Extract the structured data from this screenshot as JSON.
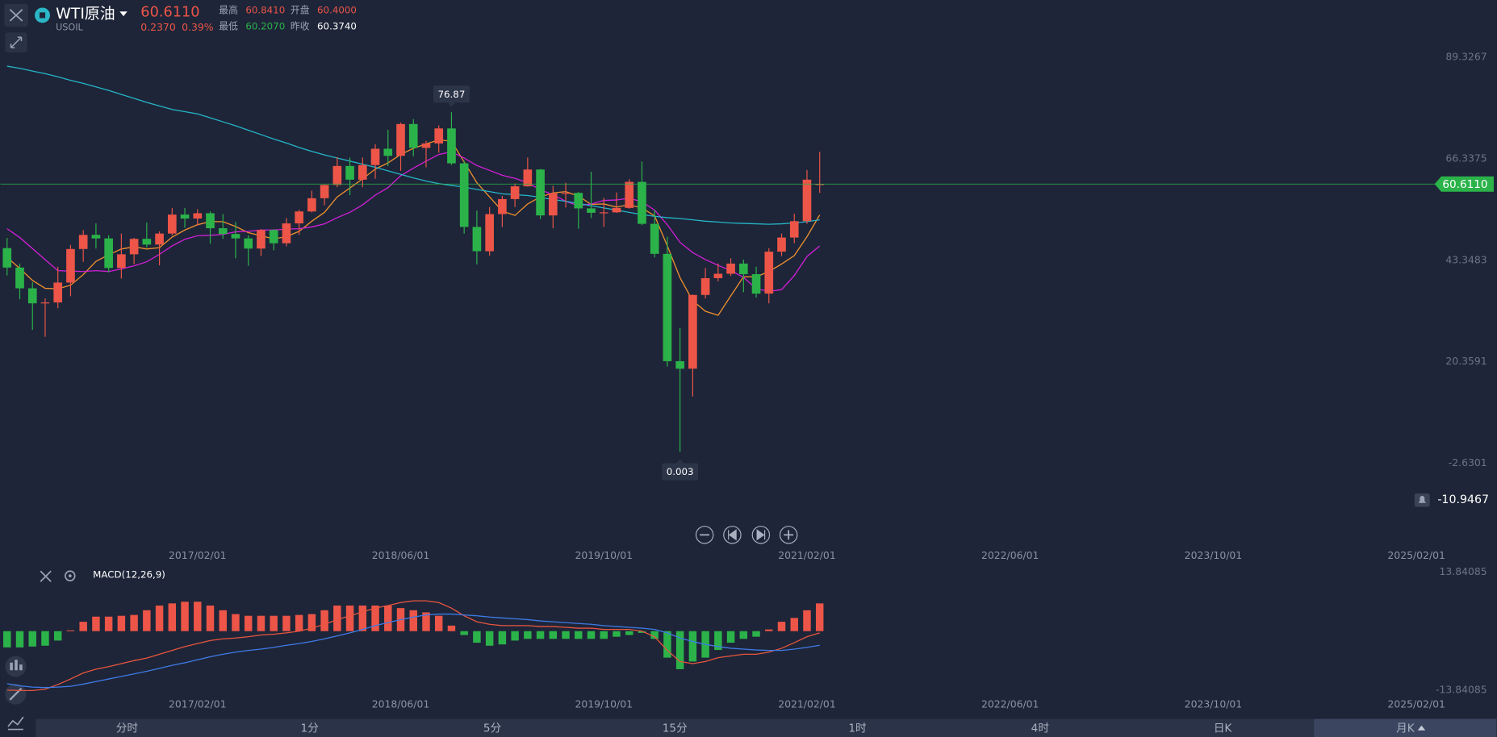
{
  "header": {
    "symbol": "WTI原油",
    "code": "USOIL",
    "price": "60.6110",
    "change": "0.2370",
    "change_pct": "0.39%",
    "stats": [
      {
        "label": "最高",
        "value": "60.8410",
        "tone": "up"
      },
      {
        "label": "开盘",
        "value": "60.4000",
        "tone": "up"
      },
      {
        "label": "最低",
        "value": "60.2070",
        "tone": "down"
      },
      {
        "label": "昨收",
        "value": "60.3740",
        "tone": "flat"
      }
    ]
  },
  "chart_data": [
    {
      "type": "candlestick",
      "x": [
        "2015/11/01",
        "2015/12/01",
        "2016/01/01",
        "2016/02/01",
        "2016/03/01",
        "2016/04/01",
        "2016/05/01",
        "2016/06/01",
        "2016/07/01",
        "2016/08/01",
        "2016/09/01",
        "2016/10/01",
        "2016/11/01",
        "2016/12/01",
        "2017/01/01",
        "2017/02/01",
        "2017/03/01",
        "2017/04/01",
        "2017/05/01",
        "2017/06/01",
        "2017/07/01",
        "2017/08/01",
        "2017/09/01",
        "2017/10/01",
        "2017/11/01",
        "2017/12/01",
        "2018/01/01",
        "2018/02/01",
        "2018/03/01",
        "2018/04/01",
        "2018/05/01",
        "2018/06/01",
        "2018/07/01",
        "2018/08/01",
        "2018/09/01",
        "2018/10/01",
        "2018/11/01",
        "2018/12/01",
        "2019/01/01",
        "2019/02/01",
        "2019/03/01",
        "2019/04/01",
        "2019/05/01",
        "2019/06/01",
        "2019/07/01",
        "2019/08/01",
        "2019/09/01",
        "2019/10/01",
        "2019/11/01",
        "2019/12/01",
        "2020/01/01",
        "2020/02/01",
        "2020/03/01",
        "2020/04/01",
        "2020/05/01",
        "2020/06/01",
        "2020/07/01",
        "2020/08/01",
        "2020/09/01",
        "2020/10/01",
        "2020/11/01",
        "2020/12/01",
        "2021/01/01",
        "2021/02/01",
        "2021/03/01"
      ],
      "open": [
        46.1,
        41.7,
        37.0,
        33.6,
        33.8,
        38.3,
        45.9,
        49.1,
        48.3,
        41.6,
        44.7,
        48.2,
        46.9,
        49.4,
        53.7,
        52.8,
        54.0,
        50.6,
        49.3,
        48.3,
        46.0,
        50.2,
        47.2,
        51.7,
        54.4,
        57.4,
        60.4,
        64.7,
        61.6,
        64.9,
        68.6,
        67.0,
        74.2,
        68.8,
        69.8,
        73.2,
        65.3,
        50.9,
        45.4,
        53.8,
        57.2,
        60.1,
        63.9,
        53.5,
        58.5,
        58.6,
        55.1,
        54.1,
        54.2,
        55.2,
        61.1,
        51.6,
        44.8,
        20.5,
        18.8,
        35.5,
        39.3,
        40.3,
        42.6,
        40.2,
        35.8,
        45.3,
        48.5,
        52.2,
        60.4
      ],
      "high": [
        48.4,
        42.6,
        38.4,
        34.7,
        41.9,
        46.8,
        50.2,
        51.7,
        49.0,
        49.4,
        48.4,
        51.9,
        49.9,
        55.2,
        55.2,
        54.9,
        54.4,
        53.8,
        52.0,
        49.0,
        50.4,
        50.4,
        52.9,
        54.8,
        59.1,
        60.5,
        66.7,
        66.6,
        66.6,
        69.6,
        72.9,
        74.5,
        75.3,
        70.4,
        73.9,
        76.87,
        65.9,
        54.6,
        55.4,
        57.9,
        60.7,
        66.6,
        64.0,
        60.2,
        60.9,
        58.8,
        63.4,
        57.5,
        58.7,
        61.7,
        65.7,
        54.7,
        48.7,
        28.0,
        35.6,
        41.6,
        42.6,
        43.8,
        43.5,
        41.9,
        46.1,
        49.4,
        53.9,
        63.8,
        67.9
      ],
      "low": [
        39.9,
        34.5,
        27.6,
        26.0,
        32.5,
        35.2,
        43.0,
        46.0,
        40.6,
        39.2,
        42.5,
        46.2,
        42.2,
        49.0,
        50.7,
        51.2,
        47.1,
        48.2,
        43.8,
        42.1,
        44.3,
        45.6,
        46.5,
        49.1,
        54.2,
        55.8,
        59.9,
        58.1,
        59.9,
        61.8,
        64.7,
        63.6,
        66.9,
        64.4,
        67.7,
        64.9,
        49.4,
        42.4,
        44.4,
        50.9,
        55.4,
        60.0,
        52.7,
        50.6,
        55.3,
        50.5,
        52.9,
        50.9,
        54.1,
        55.0,
        51.3,
        44.0,
        19.3,
        0.003,
        12.5,
        34.7,
        38.6,
        39.8,
        36.1,
        34.9,
        33.6,
        44.3,
        47.2,
        51.6,
        58.6
      ],
      "close": [
        41.7,
        37.0,
        33.6,
        33.8,
        38.3,
        45.9,
        49.1,
        48.3,
        41.6,
        44.7,
        48.2,
        46.9,
        49.4,
        53.7,
        52.8,
        54.0,
        50.6,
        49.3,
        48.3,
        46.0,
        50.2,
        47.2,
        51.7,
        54.4,
        57.4,
        60.4,
        64.7,
        61.6,
        64.9,
        68.6,
        67.0,
        74.2,
        68.8,
        69.8,
        73.2,
        65.3,
        50.9,
        45.4,
        53.8,
        57.2,
        60.1,
        63.9,
        53.5,
        58.5,
        58.6,
        55.1,
        54.1,
        54.2,
        55.2,
        61.1,
        51.6,
        44.8,
        20.5,
        18.8,
        35.5,
        39.3,
        40.3,
        42.6,
        40.2,
        35.8,
        45.3,
        48.5,
        52.2,
        61.6,
        60.611
      ],
      "up_color": "#ec5548",
      "down_color": "#2bb34a",
      "lines": [
        {
          "color": "#f0902e",
          "values": [
            44.0,
            41.5,
            38.8,
            37.0,
            36.9,
            37.7,
            40.1,
            43.1,
            44.6,
            45.9,
            46.4,
            45.9,
            46.2,
            48.6,
            50.2,
            51.4,
            52.1,
            52.1,
            51.0,
            49.6,
            48.9,
            48.2,
            48.7,
            49.9,
            52.2,
            54.2,
            57.7,
            59.7,
            61.8,
            64.0,
            65.4,
            67.3,
            68.7,
            69.7,
            70.6,
            70.3,
            65.6,
            60.9,
            57.7,
            54.5,
            53.5,
            56.1,
            57.7,
            58.6,
            58.9,
            57.9,
            56.0,
            56.1,
            55.4,
            55.9,
            55.2,
            53.4,
            46.6,
            39.4,
            34.2,
            31.8,
            30.9,
            35.3,
            39.6,
            39.6,
            40.8,
            42.5,
            44.4,
            48.7,
            53.6
          ]
        },
        {
          "color": "#d21fd8",
          "values": [
            50.5,
            48.5,
            46.0,
            43.5,
            41.0,
            40.9,
            40.8,
            41.0,
            40.8,
            41.4,
            42.1,
            43.0,
            44.7,
            46.6,
            48.1,
            48.9,
            49.0,
            49.2,
            49.8,
            49.9,
            50.2,
            50.2,
            50.4,
            50.5,
            50.9,
            51.6,
            53.0,
            54.2,
            55.9,
            58.1,
            59.8,
            62.5,
            64.2,
            65.8,
            67.3,
            67.9,
            66.5,
            64.8,
            63.7,
            62.6,
            61.9,
            60.9,
            59.3,
            58.2,
            56.7,
            55.7,
            56.1,
            56.9,
            57.0,
            57.4,
            56.6,
            54.7,
            51.4,
            47.4,
            45.1,
            43.5,
            42.2,
            41.0,
            39.5,
            36.9,
            36.3,
            36.7,
            39.9,
            44.2,
            46.6
          ]
        },
        {
          "color": "#25b5c8",
          "values": [
            87.3,
            86.8,
            86.2,
            85.6,
            84.9,
            84.1,
            83.4,
            82.6,
            81.8,
            80.9,
            80.0,
            79.1,
            78.3,
            77.5,
            77.0,
            76.5,
            75.6,
            74.7,
            73.8,
            72.8,
            71.8,
            70.8,
            69.9,
            68.9,
            68.0,
            67.2,
            66.5,
            65.8,
            65.1,
            64.4,
            63.6,
            62.8,
            62.0,
            61.3,
            60.7,
            60.3,
            59.9,
            59.4,
            58.9,
            58.4,
            58.2,
            58.0,
            57.6,
            57.1,
            56.7,
            56.2,
            55.7,
            55.2,
            54.7,
            54.2,
            53.7,
            53.3,
            53.0,
            52.8,
            52.5,
            52.2,
            52.0,
            51.8,
            51.7,
            51.6,
            51.5,
            51.6,
            51.8,
            52.1,
            52.5
          ]
        }
      ],
      "annotations": [
        {
          "x": "2018/10/01",
          "value": 76.87,
          "side": "top"
        },
        {
          "x": "2020/04/01",
          "value": 0.003,
          "side": "bottom"
        }
      ],
      "last_price": {
        "value": 60.611,
        "label": "60.6110"
      },
      "cursor_price": -10.9467,
      "xlim": [
        "2015/10/01",
        "2025/03/01"
      ],
      "xticks": [
        "2017/02/01",
        "2018/06/01",
        "2019/10/01",
        "2021/02/01",
        "2022/06/01",
        "2023/10/01",
        "2025/02/01"
      ],
      "ylim": [
        -10.9467,
        102.28
      ],
      "yticks": [
        -2.6301,
        20.3591,
        43.3483,
        66.3375,
        89.3267
      ]
    },
    {
      "type": "macd",
      "title": "MACD(12,26,9)",
      "x": [
        "2015/11/01",
        "2015/12/01",
        "2016/01/01",
        "2016/02/01",
        "2016/03/01",
        "2016/04/01",
        "2016/05/01",
        "2016/06/01",
        "2016/07/01",
        "2016/08/01",
        "2016/09/01",
        "2016/10/01",
        "2016/11/01",
        "2016/12/01",
        "2017/01/01",
        "2017/02/01",
        "2017/03/01",
        "2017/04/01",
        "2017/05/01",
        "2017/06/01",
        "2017/07/01",
        "2017/08/01",
        "2017/09/01",
        "2017/10/01",
        "2017/11/01",
        "2017/12/01",
        "2018/01/01",
        "2018/02/01",
        "2018/03/01",
        "2018/04/01",
        "2018/05/01",
        "2018/06/01",
        "2018/07/01",
        "2018/08/01",
        "2018/09/01",
        "2018/10/01",
        "2018/11/01",
        "2018/12/01",
        "2019/01/01",
        "2019/02/01",
        "2019/03/01",
        "2019/04/01",
        "2019/05/01",
        "2019/06/01",
        "2019/07/01",
        "2019/08/01",
        "2019/09/01",
        "2019/10/01",
        "2019/11/01",
        "2019/12/01",
        "2020/01/01",
        "2020/02/01",
        "2020/03/01",
        "2020/04/01",
        "2020/05/01",
        "2020/06/01",
        "2020/07/01",
        "2020/08/01",
        "2020/09/01",
        "2020/10/01",
        "2020/11/01",
        "2020/12/01",
        "2021/01/01",
        "2021/02/01",
        "2021/03/01"
      ],
      "histogram": {
        "up_color": "#ec5548",
        "down_color": "#2bb34a",
        "values": [
          -3.8,
          -3.8,
          -3.6,
          -3.4,
          -2.2,
          0.2,
          2.2,
          3.4,
          3.4,
          3.6,
          3.8,
          4.9,
          6.0,
          6.5,
          6.9,
          6.9,
          6.0,
          4.9,
          4.0,
          3.6,
          3.6,
          3.6,
          3.6,
          3.8,
          4.0,
          4.9,
          6.0,
          6.0,
          6.0,
          6.0,
          6.0,
          5.4,
          4.9,
          4.4,
          3.6,
          1.3,
          -0.9,
          -2.7,
          -3.4,
          -3.1,
          -2.2,
          -1.8,
          -1.8,
          -1.8,
          -1.8,
          -1.8,
          -1.8,
          -1.8,
          -1.3,
          -0.9,
          -0.4,
          -1.8,
          -6.2,
          -8.9,
          -7.1,
          -6.2,
          -4.4,
          -2.7,
          -1.8,
          -1.3,
          0.4,
          2.2,
          3.1,
          4.9,
          6.5
        ]
      },
      "lines": [
        {
          "color": "#e8553f",
          "values": [
            -13.8,
            -13.9,
            -13.9,
            -13.6,
            -12.5,
            -11.2,
            -9.8,
            -8.9,
            -8.3,
            -7.6,
            -6.9,
            -6.3,
            -5.4,
            -4.5,
            -3.6,
            -2.9,
            -2.2,
            -1.8,
            -1.6,
            -1.3,
            -0.9,
            -0.7,
            -0.4,
            0.0,
            0.7,
            1.6,
            2.7,
            3.6,
            4.5,
            5.4,
            6.0,
            6.7,
            7.1,
            7.1,
            6.7,
            5.4,
            3.6,
            2.2,
            1.6,
            1.3,
            1.3,
            1.3,
            1.1,
            1.1,
            0.9,
            0.7,
            0.7,
            0.4,
            0.4,
            0.4,
            0.0,
            -1.3,
            -4.5,
            -7.1,
            -7.6,
            -7.1,
            -6.2,
            -5.8,
            -5.4,
            -5.4,
            -4.9,
            -4.0,
            -2.7,
            -1.3,
            -0.4
          ]
        },
        {
          "color": "#3f7be6",
          "values": [
            -12.3,
            -12.8,
            -13.1,
            -13.2,
            -13.1,
            -12.9,
            -12.4,
            -11.8,
            -11.2,
            -10.6,
            -10.0,
            -9.4,
            -8.7,
            -8.0,
            -7.4,
            -6.7,
            -6.0,
            -5.4,
            -4.9,
            -4.5,
            -4.2,
            -3.8,
            -3.3,
            -2.9,
            -2.4,
            -1.8,
            -1.1,
            -0.4,
            0.4,
            1.3,
            2.0,
            2.7,
            3.3,
            3.8,
            4.0,
            4.0,
            3.8,
            3.6,
            3.3,
            3.1,
            2.9,
            2.7,
            2.4,
            2.2,
            2.0,
            1.8,
            1.6,
            1.3,
            1.1,
            0.9,
            0.7,
            0.4,
            -0.4,
            -1.6,
            -2.4,
            -3.1,
            -3.6,
            -4.0,
            -4.2,
            -4.4,
            -4.5,
            -4.5,
            -4.2,
            -3.8,
            -3.3
          ]
        }
      ],
      "xlim": [
        "2015/10/01",
        "2025/03/01"
      ],
      "xticks": [
        "2017/02/01",
        "2018/06/01",
        "2019/10/01",
        "2021/02/01",
        "2022/06/01",
        "2023/10/01",
        "2025/02/01"
      ],
      "ylim": [
        -13.84085,
        13.84085
      ],
      "yticks": [
        -13.84085,
        13.84085
      ]
    }
  ],
  "tabs": [
    "分时",
    "1分",
    "5分",
    "15分",
    "1时",
    "4时",
    "日K",
    "月K"
  ],
  "active_tab": "月K"
}
